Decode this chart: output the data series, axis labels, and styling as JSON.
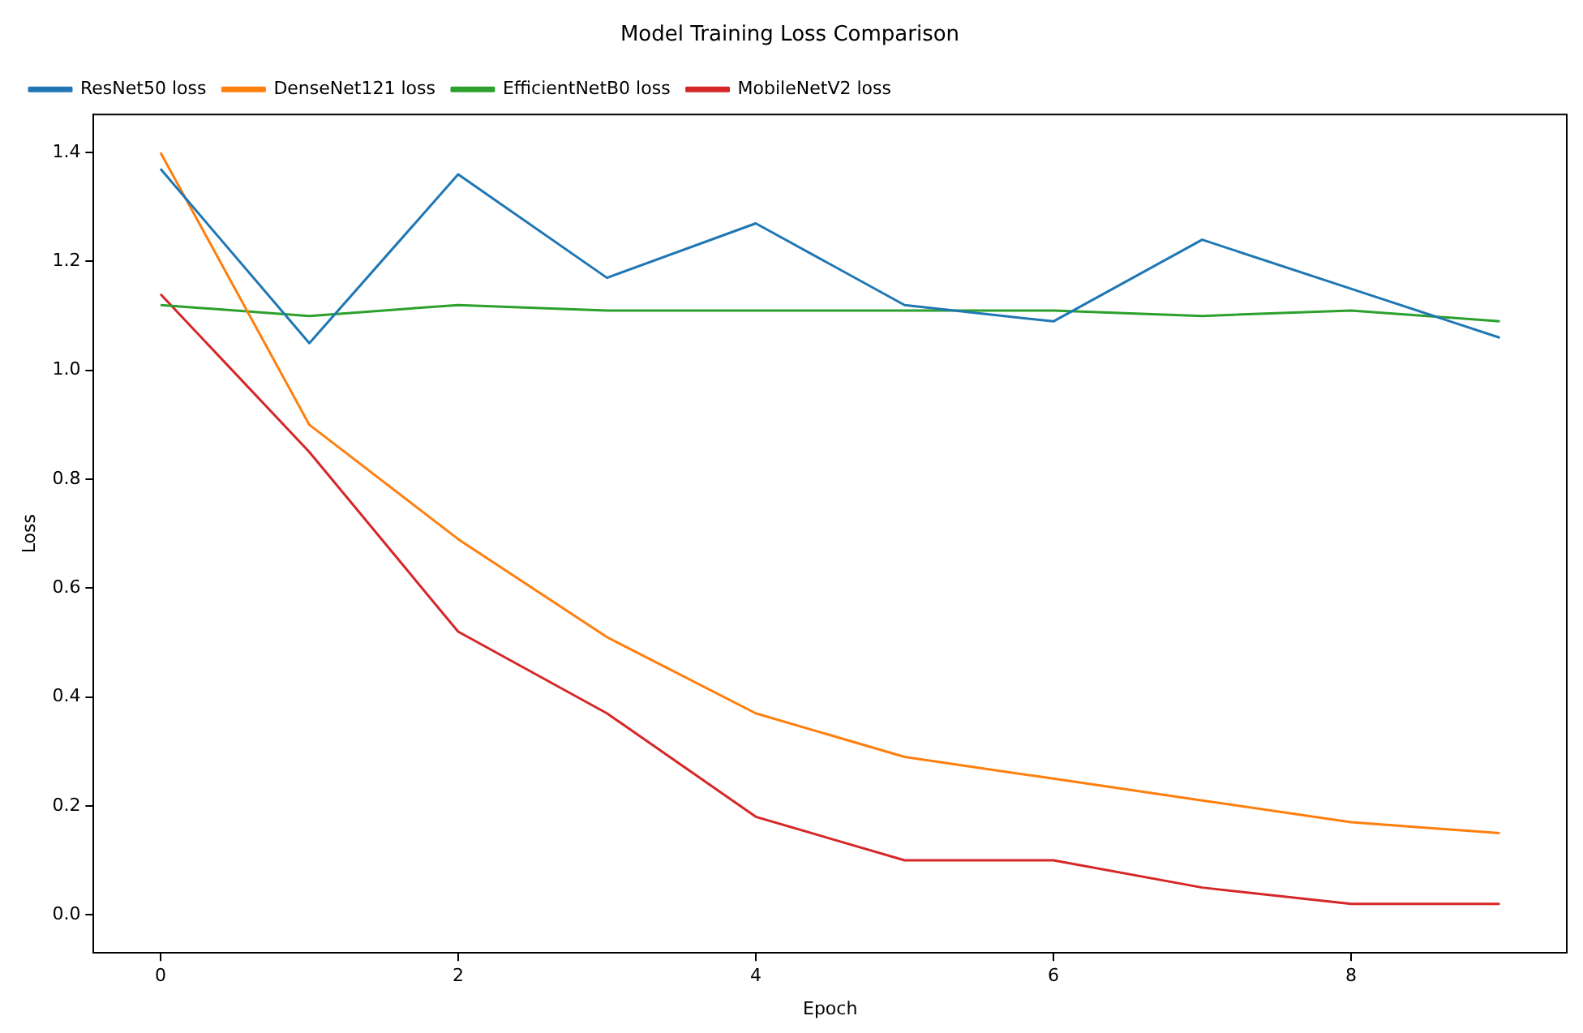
{
  "chart_data": {
    "type": "line",
    "title": "Model Training Loss Comparison",
    "xlabel": "Epoch",
    "ylabel": "Loss",
    "x": [
      0,
      1,
      2,
      3,
      4,
      5,
      6,
      7,
      8,
      9
    ],
    "series": [
      {
        "name": "ResNet50 loss",
        "color": "#1f77b4",
        "values": [
          1.37,
          1.05,
          1.36,
          1.17,
          1.27,
          1.12,
          1.09,
          1.24,
          1.15,
          1.06
        ]
      },
      {
        "name": "DenseNet121 loss",
        "color": "#ff7f0e",
        "values": [
          1.4,
          0.9,
          0.69,
          0.51,
          0.37,
          0.29,
          0.25,
          0.21,
          0.17,
          0.15
        ]
      },
      {
        "name": "EfficientNetB0 loss",
        "color": "#2ca02c",
        "values": [
          1.12,
          1.1,
          1.12,
          1.11,
          1.11,
          1.11,
          1.11,
          1.1,
          1.11,
          1.09
        ]
      },
      {
        "name": "MobileNetV2 loss",
        "color": "#d62728",
        "values": [
          1.14,
          0.85,
          0.52,
          0.37,
          0.18,
          0.1,
          0.1,
          0.05,
          0.02,
          0.02
        ]
      }
    ],
    "xlim": [
      -0.45,
      9.45
    ],
    "ylim": [
      -0.07,
      1.47
    ],
    "xticks": [
      0,
      2,
      4,
      6,
      8
    ],
    "yticks": [
      {
        "value": 0,
        "label": "0.0"
      },
      0.2,
      0.4,
      0.6,
      0.8,
      {
        "value": 1,
        "label": "1.0"
      },
      1.2,
      1.4
    ],
    "grid": false,
    "legend": "top left",
    "marker": "none",
    "line_style": "solid"
  }
}
